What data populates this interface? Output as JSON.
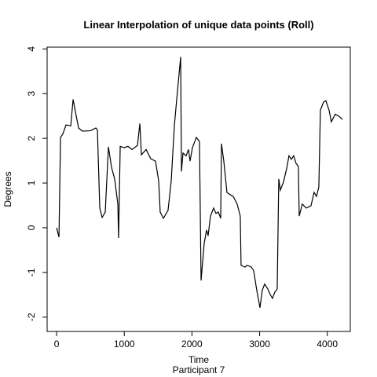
{
  "chart_data": {
    "type": "line",
    "title": "Linear Interpolation of unique data points (Roll)",
    "xlabel": "Time",
    "subtitle": "Participant  7",
    "ylabel": "Degrees",
    "x": [
      0,
      35,
      58,
      93,
      139,
      209,
      244,
      290,
      325,
      383,
      499,
      580,
      603,
      638,
      673,
      719,
      766,
      812,
      858,
      905,
      916,
      940,
      998,
      1056,
      1114,
      1195,
      1230,
      1253,
      1323,
      1392,
      1462,
      1508,
      1531,
      1578,
      1647,
      1694,
      1740,
      1787,
      1833,
      1845,
      1868,
      1914,
      1949,
      1972,
      2007,
      2065,
      2111,
      2135,
      2181,
      2216,
      2239,
      2274,
      2320,
      2355,
      2390,
      2425,
      2436,
      2471,
      2517,
      2564,
      2610,
      2668,
      2714,
      2726,
      2784,
      2819,
      2877,
      2912,
      2958,
      3005,
      3039,
      3074,
      3121,
      3155,
      3190,
      3225,
      3260,
      3283,
      3306,
      3352,
      3399,
      3434,
      3469,
      3503,
      3538,
      3573,
      3585,
      3631,
      3689,
      3759,
      3805,
      3840,
      3875,
      3898,
      3944,
      3979,
      4026,
      4060,
      4118,
      4176,
      4223
    ],
    "series": [
      {
        "name": "Roll",
        "color": "#000000",
        "values": [
          0,
          -0.21,
          2.02,
          2.1,
          2.3,
          2.28,
          2.87,
          2.5,
          2.23,
          2.16,
          2.17,
          2.23,
          2.19,
          0.44,
          0.23,
          0.35,
          1.81,
          1.35,
          1.09,
          0.53,
          -0.23,
          1.82,
          1.79,
          1.82,
          1.75,
          1.84,
          2.33,
          1.63,
          1.75,
          1.54,
          1.49,
          1.05,
          0.35,
          0.21,
          0.39,
          1.05,
          2.28,
          3.07,
          3.82,
          1.26,
          1.67,
          1.61,
          1.75,
          1.49,
          1.79,
          2.02,
          1.93,
          -1.18,
          -0.35,
          -0.05,
          -0.18,
          0.26,
          0.44,
          0.32,
          0.35,
          0.21,
          1.88,
          1.49,
          0.79,
          0.74,
          0.7,
          0.53,
          0.26,
          -0.84,
          -0.88,
          -0.84,
          -0.88,
          -0.96,
          -1.4,
          -1.79,
          -1.4,
          -1.26,
          -1.37,
          -1.49,
          -1.58,
          -1.44,
          -1.37,
          1.09,
          0.84,
          1.02,
          1.32,
          1.61,
          1.53,
          1.61,
          1.44,
          1.37,
          0.26,
          0.53,
          0.44,
          0.49,
          0.79,
          0.7,
          0.91,
          2.63,
          2.81,
          2.84,
          2.63,
          2.37,
          2.54,
          2.49,
          2.42
        ]
      }
    ],
    "xlim": [
      -140,
      4340
    ],
    "xticks": [
      0,
      1000,
      2000,
      3000,
      4000
    ],
    "ylim": [
      -2.32,
      4.04
    ],
    "yticks": [
      -2,
      -1,
      0,
      1,
      2,
      3,
      4
    ]
  }
}
